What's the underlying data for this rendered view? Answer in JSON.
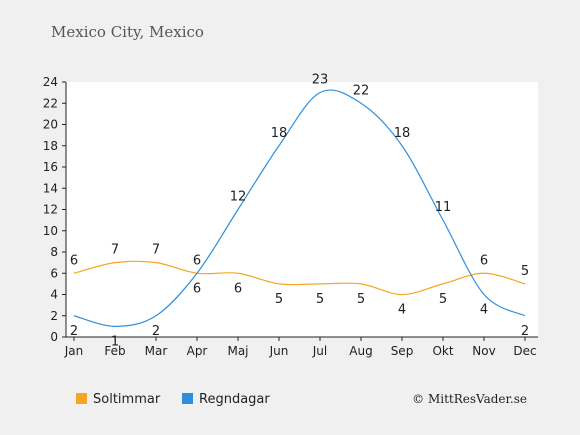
{
  "chart_data": {
    "type": "line",
    "title": "Mexico City, Mexico",
    "categories": [
      "Jan",
      "Feb",
      "Mar",
      "Apr",
      "Maj",
      "Jun",
      "Jul",
      "Aug",
      "Sep",
      "Okt",
      "Nov",
      "Dec"
    ],
    "ylim": [
      0,
      24
    ],
    "yticks": [
      0,
      2,
      4,
      6,
      8,
      10,
      12,
      14,
      16,
      18,
      20,
      22,
      24
    ],
    "grid": false,
    "legend_position": "bottom-left",
    "series": [
      {
        "name": "Soltimmar",
        "color": "#f5a623",
        "values": [
          6,
          7,
          7,
          6,
          6,
          5,
          5,
          5,
          4,
          5,
          6,
          5
        ]
      },
      {
        "name": "Regndagar",
        "color": "#2f8fdd",
        "values": [
          2,
          1,
          2,
          6,
          12,
          18,
          23,
          22,
          18,
          11,
          4,
          2
        ]
      }
    ]
  },
  "credit": "© MittResVader.se"
}
